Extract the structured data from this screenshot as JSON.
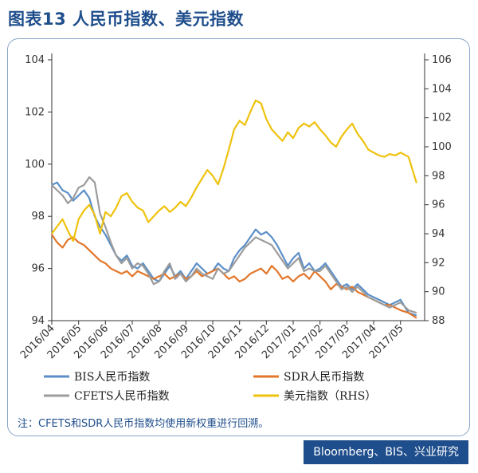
{
  "title": "图表13 人民币指数、美元指数",
  "note": "注：CFETS和SDR人民币指数均使用新权重进行回溯。",
  "source": "Bloomberg、BIS、兴业研究",
  "colors": {
    "bis": "#5b8fc7",
    "sdr": "#e2772b",
    "cfets": "#9c9c9c",
    "usd": "#efc20d",
    "accent": "#1f4e8c"
  },
  "chart_data": {
    "type": "line",
    "x_ticks": [
      "2016/04",
      "2016/05",
      "2016/06",
      "2016/07",
      "2016/08",
      "2016/09",
      "2016/10",
      "2016/11",
      "2016/12",
      "2017/01",
      "2017/02",
      "2017/03",
      "2017/04",
      "2017/05"
    ],
    "y_left": {
      "range": [
        94,
        104
      ],
      "ticks": [
        "94",
        "96",
        "98",
        "100",
        "102",
        "104"
      ]
    },
    "y_right": {
      "range": [
        88,
        106
      ],
      "ticks": [
        "88",
        "90",
        "92",
        "94",
        "96",
        "98",
        "100",
        "102",
        "104",
        "106"
      ]
    },
    "legend": [
      "BIS人民币指数",
      "SDR人民币指数",
      "CFETS人民币指数",
      "美元指数（RHS）"
    ],
    "series": [
      {
        "name": "BIS人民币指数",
        "axis": "left",
        "color": "#5b8fc7",
        "x": [
          0,
          0.2,
          0.4,
          0.6,
          0.8,
          1.0,
          1.2,
          1.4,
          1.6,
          1.8,
          2.0,
          2.2,
          2.4,
          2.6,
          2.8,
          3.0,
          3.2,
          3.4,
          3.6,
          3.8,
          4.0,
          4.2,
          4.4,
          4.6,
          4.8,
          5.0,
          5.2,
          5.4,
          5.6,
          5.8,
          6.0,
          6.2,
          6.4,
          6.6,
          6.8,
          7.0,
          7.2,
          7.4,
          7.6,
          7.8,
          8.0,
          8.2,
          8.4,
          8.6,
          8.8,
          9.0,
          9.2,
          9.4,
          9.6,
          9.8,
          10.0,
          10.2,
          10.4,
          10.6,
          10.8,
          11.0,
          11.2,
          11.4,
          11.6,
          11.8,
          12.0,
          12.2,
          12.4,
          12.6,
          12.8,
          13.0,
          13.3,
          13.6
        ],
        "y": [
          99.2,
          99.3,
          99.0,
          98.9,
          98.6,
          98.8,
          99.0,
          98.7,
          98.0,
          97.6,
          97.3,
          96.9,
          96.5,
          96.3,
          96.5,
          96.1,
          96.0,
          96.2,
          95.9,
          95.6,
          95.5,
          95.8,
          96.1,
          95.7,
          95.9,
          95.6,
          95.9,
          96.2,
          96.0,
          95.8,
          95.9,
          96.2,
          96.0,
          95.9,
          96.4,
          96.7,
          96.9,
          97.2,
          97.5,
          97.3,
          97.4,
          97.2,
          96.9,
          96.5,
          96.1,
          96.4,
          96.6,
          96.0,
          96.2,
          95.9,
          96.0,
          96.2,
          95.9,
          95.6,
          95.3,
          95.4,
          95.2,
          95.4,
          95.2,
          95.0,
          94.9,
          94.8,
          94.7,
          94.6,
          94.7,
          94.8,
          94.3,
          94.2
        ]
      },
      {
        "name": "SDR人民币指数",
        "axis": "left",
        "color": "#e2772b",
        "x": [
          0,
          0.2,
          0.4,
          0.6,
          0.8,
          1.0,
          1.2,
          1.4,
          1.6,
          1.8,
          2.0,
          2.2,
          2.4,
          2.6,
          2.8,
          3.0,
          3.2,
          3.4,
          3.6,
          3.8,
          4.0,
          4.2,
          4.4,
          4.6,
          4.8,
          5.0,
          5.2,
          5.4,
          5.6,
          5.8,
          6.0,
          6.2,
          6.4,
          6.6,
          6.8,
          7.0,
          7.2,
          7.4,
          7.6,
          7.8,
          8.0,
          8.2,
          8.4,
          8.6,
          8.8,
          9.0,
          9.2,
          9.4,
          9.6,
          9.8,
          10.0,
          10.2,
          10.4,
          10.6,
          10.8,
          11.0,
          11.2,
          11.4,
          11.6,
          11.8,
          12.0,
          12.2,
          12.4,
          12.6,
          12.8,
          13.0,
          13.3,
          13.6
        ],
        "y": [
          97.3,
          97.0,
          96.8,
          97.1,
          97.2,
          97.0,
          96.9,
          96.7,
          96.5,
          96.3,
          96.2,
          96.0,
          95.9,
          95.8,
          95.9,
          95.7,
          95.9,
          95.8,
          95.7,
          95.6,
          95.7,
          95.8,
          95.6,
          95.7,
          95.8,
          95.6,
          95.7,
          95.9,
          95.7,
          95.8,
          95.9,
          96.0,
          95.8,
          95.6,
          95.7,
          95.5,
          95.6,
          95.8,
          95.9,
          96.0,
          95.8,
          96.1,
          95.9,
          95.6,
          95.7,
          95.5,
          95.7,
          95.8,
          95.6,
          95.9,
          95.7,
          95.5,
          95.2,
          95.4,
          95.3,
          95.2,
          95.3,
          95.1,
          95.0,
          94.9,
          94.8,
          94.7,
          94.6,
          94.6,
          94.5,
          94.4,
          94.3,
          94.1
        ]
      },
      {
        "name": "CFETS人民币指数",
        "axis": "left",
        "color": "#9c9c9c",
        "x": [
          0,
          0.2,
          0.4,
          0.6,
          0.8,
          1.0,
          1.2,
          1.4,
          1.6,
          1.8,
          2.0,
          2.2,
          2.4,
          2.6,
          2.8,
          3.0,
          3.2,
          3.4,
          3.6,
          3.8,
          4.0,
          4.2,
          4.4,
          4.6,
          4.8,
          5.0,
          5.2,
          5.4,
          5.6,
          5.8,
          6.0,
          6.2,
          6.4,
          6.6,
          6.8,
          7.0,
          7.2,
          7.4,
          7.6,
          7.8,
          8.0,
          8.2,
          8.4,
          8.6,
          8.8,
          9.0,
          9.2,
          9.4,
          9.6,
          9.8,
          10.0,
          10.2,
          10.4,
          10.6,
          10.8,
          11.0,
          11.2,
          11.4,
          11.6,
          11.8,
          12.0,
          12.2,
          12.4,
          12.6,
          12.8,
          13.0,
          13.3,
          13.6
        ],
        "y": [
          99.2,
          99.0,
          98.8,
          98.5,
          98.7,
          99.1,
          99.2,
          99.5,
          99.3,
          98.1,
          97.6,
          97.0,
          96.5,
          96.2,
          96.4,
          96.0,
          96.2,
          96.1,
          95.8,
          95.4,
          95.5,
          95.9,
          96.2,
          95.6,
          95.8,
          95.5,
          95.7,
          96.0,
          95.8,
          95.7,
          95.6,
          96.0,
          95.8,
          95.9,
          96.2,
          96.5,
          96.8,
          97.0,
          97.2,
          97.1,
          97.0,
          96.9,
          96.6,
          96.3,
          96.0,
          96.2,
          96.4,
          95.9,
          96.0,
          95.9,
          95.9,
          96.1,
          95.8,
          95.5,
          95.2,
          95.3,
          95.1,
          95.3,
          95.1,
          94.9,
          94.8,
          94.7,
          94.6,
          94.5,
          94.6,
          94.7,
          94.4,
          94.3
        ]
      },
      {
        "name": "美元指数（RHS）",
        "axis": "right",
        "color": "#efc20d",
        "x": [
          0,
          0.2,
          0.4,
          0.6,
          0.8,
          1.0,
          1.2,
          1.4,
          1.6,
          1.8,
          2.0,
          2.2,
          2.4,
          2.6,
          2.8,
          3.0,
          3.2,
          3.4,
          3.6,
          3.8,
          4.0,
          4.2,
          4.4,
          4.6,
          4.8,
          5.0,
          5.2,
          5.4,
          5.6,
          5.8,
          6.0,
          6.2,
          6.4,
          6.6,
          6.8,
          7.0,
          7.2,
          7.4,
          7.6,
          7.8,
          8.0,
          8.2,
          8.4,
          8.6,
          8.8,
          9.0,
          9.2,
          9.4,
          9.6,
          9.8,
          10.0,
          10.2,
          10.4,
          10.6,
          10.8,
          11.0,
          11.2,
          11.4,
          11.6,
          11.8,
          12.0,
          12.2,
          12.4,
          12.6,
          12.8,
          13.0,
          13.3,
          13.6
        ],
        "y": [
          94.0,
          94.5,
          95.0,
          94.2,
          93.5,
          95.0,
          95.6,
          96.0,
          95.3,
          94.0,
          95.5,
          95.2,
          95.8,
          96.6,
          96.8,
          96.2,
          95.8,
          95.6,
          94.8,
          95.2,
          95.6,
          95.9,
          95.5,
          95.8,
          96.2,
          95.9,
          96.5,
          97.2,
          97.8,
          98.4,
          98.0,
          97.4,
          98.5,
          99.8,
          101.2,
          101.8,
          101.5,
          102.4,
          103.2,
          103.0,
          101.9,
          101.2,
          100.8,
          100.4,
          101.0,
          100.6,
          101.3,
          101.6,
          101.4,
          101.7,
          101.2,
          100.8,
          100.3,
          100.0,
          100.7,
          101.2,
          101.6,
          100.9,
          100.4,
          99.8,
          99.6,
          99.4,
          99.3,
          99.5,
          99.4,
          99.6,
          99.3,
          97.5
        ]
      }
    ]
  }
}
